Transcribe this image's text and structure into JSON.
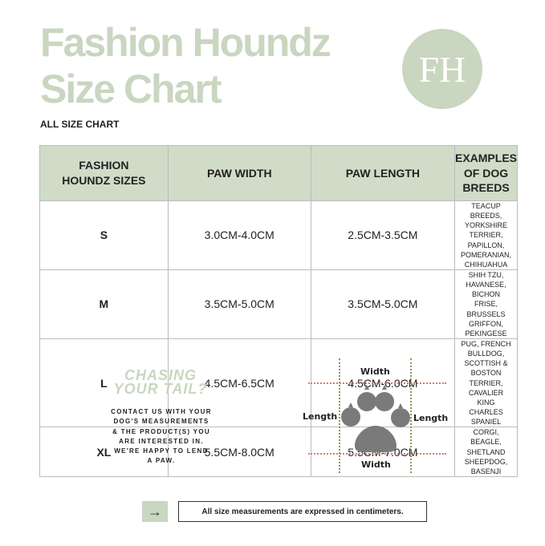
{
  "header": {
    "title_line1": "Fashion Houndz",
    "title_line2": "Size Chart",
    "logo_text": "FH",
    "subtitle": "ALL SIZE CHART"
  },
  "table": {
    "headers": [
      "FASHION HOUNDZ SIZES",
      "PAW WIDTH",
      "PAW LENGTH",
      "EXAMPLES OF DOG BREEDS"
    ],
    "rows": [
      {
        "size": "S",
        "width": "3.0CM-4.0CM",
        "length": "2.5CM-3.5CM",
        "breeds": "TEACUP BREEDS, YORKSHIRE TERRIER, PAPILLON, POMERANIAN, CHIHUAHUA"
      },
      {
        "size": "M",
        "width": "3.5CM-5.0CM",
        "length": "3.5CM-5.0CM",
        "breeds": "SHIH TZU, HAVANESE, BICHON FRISE, BRUSSELS GRIFFON, PEKINGESE"
      },
      {
        "size": "L",
        "width": "4.5CM-6.5CM",
        "length": "4.5CM-6.0CM",
        "breeds": "PUG, FRENCH BULLDOG, SCOTTISH & BOSTON TERRIER, CAVALIER KING CHARLES SPANIEL"
      },
      {
        "size": "XL",
        "width": "5.5CM-8.0CM",
        "length": "5.5CM-7.0CM",
        "breeds": "CORGI, BEAGLE, SHETLAND SHEEPDOG, BASENJI"
      }
    ]
  },
  "contact": {
    "heading": "CHASING YOUR TAIL?",
    "body": "CONTACT US WITH YOUR DOG'S MEASUREMENTS & THE PRODUCT(S) YOU ARE INTERESTED IN. WE'RE HAPPY TO LEND A PAW."
  },
  "diagram": {
    "width_top": "Width",
    "width_bottom": "Width",
    "length_left": "Length",
    "length_right": "Length",
    "icon": "paw-icon"
  },
  "footer": {
    "arrow_icon": "arrow-right-icon",
    "note": "All size measurements are expressed in centimeters."
  },
  "colors": {
    "accent": "#c9d6c0",
    "header_bg": "#d0dcc8"
  }
}
